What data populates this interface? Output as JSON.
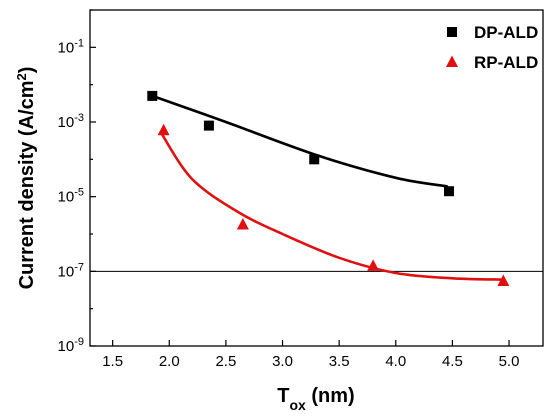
{
  "chart_data": {
    "type": "scatter",
    "title": "",
    "xlabel": {
      "main": "T",
      "sub": "ox",
      "unit": " (nm)"
    },
    "ylabel": {
      "main": "Current density (A/cm",
      "sup": "2",
      "close": ")"
    },
    "xlim": [
      1.3,
      5.3
    ],
    "ylim_log10": [
      -9,
      0
    ],
    "y_scale": "log",
    "x_ticks": [
      {
        "value": 1.5,
        "label": "1.5"
      },
      {
        "value": 2.0,
        "label": "2.0"
      },
      {
        "value": 2.5,
        "label": "2.5"
      },
      {
        "value": 3.0,
        "label": "3.0"
      },
      {
        "value": 3.5,
        "label": "3.5"
      },
      {
        "value": 4.0,
        "label": "4.0"
      },
      {
        "value": 4.5,
        "label": "4.5"
      },
      {
        "value": 5.0,
        "label": "5.0"
      }
    ],
    "y_ticks": [
      {
        "exp": -1,
        "base": "10",
        "sup": "-1"
      },
      {
        "exp": -3,
        "base": "10",
        "sup": "-3"
      },
      {
        "exp": -5,
        "base": "10",
        "sup": "-5"
      },
      {
        "exp": -7,
        "base": "10",
        "sup": "-7"
      },
      {
        "exp": -9,
        "base": "10",
        "sup": "-9"
      }
    ],
    "reference_line_y": 1e-07,
    "legend_position": "top-right",
    "series": [
      {
        "name": "DP-ALD",
        "marker": "square",
        "color": "#000000",
        "fit_color": "#000000",
        "points": [
          {
            "x": 1.85,
            "y": 0.005
          },
          {
            "x": 2.35,
            "y": 0.0008
          },
          {
            "x": 3.28,
            "y": 0.0001
          },
          {
            "x": 4.47,
            "y": 1.4e-05
          }
        ],
        "fit": [
          [
            1.85,
            0.005
          ],
          [
            2.5,
            0.001
          ],
          [
            3.3,
            0.00013
          ],
          [
            4.0,
            3.2e-05
          ],
          [
            4.45,
            1.9e-05
          ]
        ]
      },
      {
        "name": "RP-ALD",
        "marker": "triangle",
        "color": "#e01010",
        "fit_color": "#e01010",
        "points": [
          {
            "x": 1.95,
            "y": 0.0006
          },
          {
            "x": 2.65,
            "y": 1.8e-06
          },
          {
            "x": 3.8,
            "y": 1.4e-07
          },
          {
            "x": 4.95,
            "y": 5.5e-08
          }
        ],
        "fit": [
          [
            1.93,
            0.0005
          ],
          [
            2.2,
            3e-05
          ],
          [
            2.6,
            4e-06
          ],
          [
            3.0,
            1e-06
          ],
          [
            3.5,
            2.3e-07
          ],
          [
            4.0,
            9e-08
          ],
          [
            4.5,
            6.5e-08
          ],
          [
            4.95,
            6e-08
          ]
        ]
      }
    ]
  }
}
